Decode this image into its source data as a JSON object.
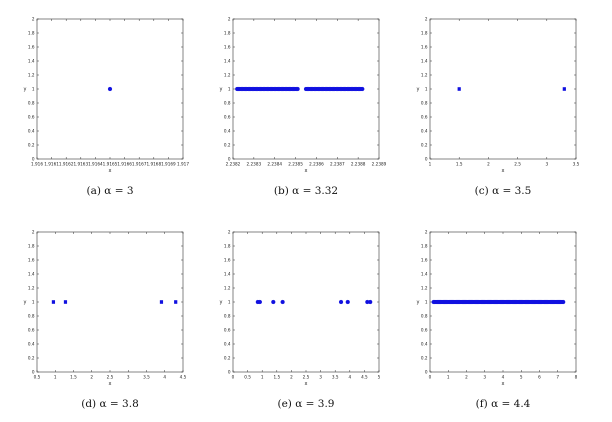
{
  "chart_data": [
    {
      "type": "scatter",
      "caption": "(a)  α = 3",
      "xlabel": "x",
      "ylabel": "y",
      "xlim": [
        1.916,
        1.917
      ],
      "ylim": [
        0,
        2
      ],
      "x_ticks": [
        "1.916",
        "1.9161",
        "1.9162",
        "1.9163",
        "1.9164",
        "1.9165",
        "1.9166",
        "1.9167",
        "1.9168",
        "1.9169",
        "1.917"
      ],
      "y_ticks": [
        "0",
        "0.2",
        "0.4",
        "0.6",
        "0.8",
        "1",
        "1.2",
        "1.4",
        "1.6",
        "1.8",
        "2"
      ],
      "marker": "circle",
      "points": [
        {
          "x": 1.9165,
          "y": 1
        }
      ]
    },
    {
      "type": "scatter",
      "caption": "(b)  α = 3.32",
      "xlabel": "x",
      "ylabel": "y",
      "xlim": [
        2.2382,
        2.2389
      ],
      "ylim": [
        0,
        2
      ],
      "x_ticks": [
        "2.2382",
        "2.2383",
        "2.2384",
        "2.2385",
        "2.2386",
        "2.2387",
        "2.2388",
        "2.2389"
      ],
      "y_ticks": [
        "0",
        "0.2",
        "0.4",
        "0.6",
        "0.8",
        "1",
        "1.2",
        "1.4",
        "1.6",
        "1.8",
        "2"
      ],
      "marker": "circle",
      "point_ranges": [
        {
          "x_start": 2.23822,
          "x_end": 2.23851,
          "y": 1,
          "count": 45
        },
        {
          "x_start": 2.23855,
          "x_end": 2.23882,
          "y": 1,
          "count": 42
        }
      ]
    },
    {
      "type": "scatter",
      "caption": "(c)  α = 3.5",
      "xlabel": "x",
      "ylabel": "y",
      "xlim": [
        1,
        3.5
      ],
      "ylim": [
        0,
        2
      ],
      "x_ticks": [
        "1",
        "1.5",
        "2",
        "2.5",
        "3",
        "3.5"
      ],
      "y_ticks": [
        "0",
        "0.2",
        "0.4",
        "0.6",
        "0.8",
        "1",
        "1.2",
        "1.4",
        "1.6",
        "1.8",
        "2"
      ],
      "marker": "square",
      "points": [
        {
          "x": 1.5,
          "y": 1
        },
        {
          "x": 3.3,
          "y": 1
        }
      ]
    },
    {
      "type": "scatter",
      "caption": "(d)  α = 3.8",
      "xlabel": "x",
      "ylabel": "y",
      "xlim": [
        0.5,
        4.5
      ],
      "ylim": [
        0,
        2
      ],
      "x_ticks": [
        "0.5",
        "1",
        "1.5",
        "2",
        "2.5",
        "3",
        "3.5",
        "4",
        "4.5"
      ],
      "y_ticks": [
        "0",
        "0.2",
        "0.4",
        "0.6",
        "0.8",
        "1",
        "1.2",
        "1.4",
        "1.6",
        "1.8",
        "2"
      ],
      "marker": "square",
      "points": [
        {
          "x": 0.95,
          "y": 1
        },
        {
          "x": 1.28,
          "y": 1
        },
        {
          "x": 3.91,
          "y": 1
        },
        {
          "x": 4.3,
          "y": 1
        }
      ]
    },
    {
      "type": "scatter",
      "caption": "(e)  α = 3.9",
      "xlabel": "x",
      "ylabel": "y",
      "xlim": [
        0,
        5
      ],
      "ylim": [
        0,
        2
      ],
      "x_ticks": [
        "0",
        "0.5",
        "1",
        "1.5",
        "2",
        "2.5",
        "3",
        "3.5",
        "4",
        "4.5",
        "5"
      ],
      "y_ticks": [
        "0",
        "0.2",
        "0.4",
        "0.6",
        "0.8",
        "1",
        "1.2",
        "1.4",
        "1.6",
        "1.8",
        "2"
      ],
      "marker": "circle",
      "points": [
        {
          "x": 0.85,
          "y": 1
        },
        {
          "x": 0.92,
          "y": 1
        },
        {
          "x": 1.38,
          "y": 1
        },
        {
          "x": 1.7,
          "y": 1
        },
        {
          "x": 3.7,
          "y": 1
        },
        {
          "x": 3.93,
          "y": 1
        },
        {
          "x": 4.6,
          "y": 1
        },
        {
          "x": 4.7,
          "y": 1
        }
      ]
    },
    {
      "type": "scatter",
      "caption": "(f)  α = 4.4",
      "xlabel": "x",
      "ylabel": "y",
      "xlim": [
        0,
        8
      ],
      "ylim": [
        0,
        2
      ],
      "x_ticks": [
        "0",
        "1",
        "2",
        "3",
        "4",
        "5",
        "6",
        "7",
        "8"
      ],
      "y_ticks": [
        "0",
        "0.2",
        "0.4",
        "0.6",
        "0.8",
        "1",
        "1.2",
        "1.4",
        "1.6",
        "1.8",
        "2"
      ],
      "marker": "circle",
      "point_ranges": [
        {
          "x_start": 0.2,
          "x_end": 7.3,
          "y": 1,
          "count": 110
        }
      ]
    }
  ],
  "colors": {
    "marker": "#1010e0",
    "axis": "#333333",
    "text": "#222222"
  }
}
